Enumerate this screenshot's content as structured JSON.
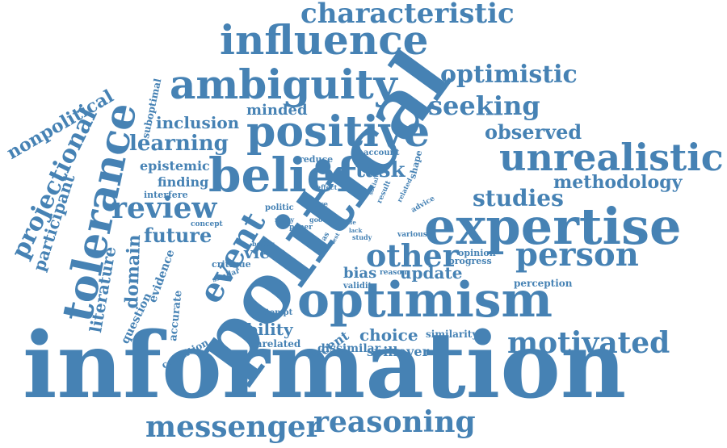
{
  "color": "#4682B4",
  "words": [
    {
      "text": "information",
      "size": 112,
      "rotate": 0
    },
    {
      "text": "political",
      "size": 100,
      "rotate": -54
    },
    {
      "text": "expertise",
      "size": 62,
      "rotate": 0
    },
    {
      "text": "optimism",
      "size": 60,
      "rotate": 0
    },
    {
      "text": "tolerance",
      "size": 52,
      "rotate": -78
    },
    {
      "text": "belief",
      "size": 58,
      "rotate": 0
    },
    {
      "text": "positive",
      "size": 52,
      "rotate": 0
    },
    {
      "text": "ambiguity",
      "size": 50,
      "rotate": 0
    },
    {
      "text": "influence",
      "size": 50,
      "rotate": 0
    },
    {
      "text": "unrealistic",
      "size": 46,
      "rotate": 0
    },
    {
      "text": "characteristic",
      "size": 34,
      "rotate": 0
    },
    {
      "text": "person",
      "size": 40,
      "rotate": 0
    },
    {
      "text": "reasoning",
      "size": 36,
      "rotate": 0
    },
    {
      "text": "messenger",
      "size": 36,
      "rotate": 0
    },
    {
      "text": "motivated",
      "size": 36,
      "rotate": 0
    },
    {
      "text": "other",
      "size": 38,
      "rotate": 0
    },
    {
      "text": "event",
      "size": 40,
      "rotate": -60
    },
    {
      "text": "review",
      "size": 36,
      "rotate": 0
    },
    {
      "text": "projectional",
      "size": 30,
      "rotate": -64
    },
    {
      "text": "optimistic",
      "size": 30,
      "rotate": 0
    },
    {
      "text": "seeking",
      "size": 32,
      "rotate": 0
    },
    {
      "text": "studies",
      "size": 28,
      "rotate": 0
    },
    {
      "text": "learning",
      "size": 26,
      "rotate": 0
    },
    {
      "text": "observed",
      "size": 24,
      "rotate": 0
    },
    {
      "text": "methodology",
      "size": 22,
      "rotate": 0
    },
    {
      "text": "task",
      "size": 26,
      "rotate": 0
    },
    {
      "text": "nonpolitical",
      "size": 22,
      "rotate": -30
    },
    {
      "text": "participant",
      "size": 20,
      "rotate": -72
    },
    {
      "text": "literature",
      "size": 20,
      "rotate": -80
    },
    {
      "text": "domain",
      "size": 22,
      "rotate": -88
    },
    {
      "text": "future",
      "size": 24,
      "rotate": 0
    },
    {
      "text": "inclusion",
      "size": 20,
      "rotate": 0
    },
    {
      "text": "minded",
      "size": 18,
      "rotate": 0
    },
    {
      "text": "epistemic",
      "size": 16,
      "rotate": 0
    },
    {
      "text": "finding",
      "size": 16,
      "rotate": 0
    },
    {
      "text": "interfere",
      "size": 11,
      "rotate": 0
    },
    {
      "text": "suboptimal",
      "size": 12,
      "rotate": -78
    },
    {
      "text": "view",
      "size": 20,
      "rotate": 0
    },
    {
      "text": "ability",
      "size": 20,
      "rotate": 0
    },
    {
      "text": "choice",
      "size": 20,
      "rotate": 0
    },
    {
      "text": "update",
      "size": 20,
      "rotate": 0
    },
    {
      "text": "bias",
      "size": 18,
      "rotate": 0
    },
    {
      "text": "evidence",
      "size": 14,
      "rotate": -70
    },
    {
      "text": "question",
      "size": 14,
      "rotate": -64
    },
    {
      "text": "accurate",
      "size": 13,
      "rotate": -84
    },
    {
      "text": "condition",
      "size": 12,
      "rotate": -28
    },
    {
      "text": "critique",
      "size": 11,
      "rotate": 0
    },
    {
      "text": "similar",
      "size": 9,
      "rotate": -20
    },
    {
      "text": "concept",
      "size": 9,
      "rotate": 0
    },
    {
      "text": "unrelated",
      "size": 12,
      "rotate": 0
    },
    {
      "text": "recent",
      "size": 16,
      "rotate": -34
    },
    {
      "text": "dissimilar",
      "size": 14,
      "rotate": 0
    },
    {
      "text": "spillover",
      "size": 16,
      "rotate": 0
    },
    {
      "text": "similarity",
      "size": 12,
      "rotate": 0
    },
    {
      "text": "perception",
      "size": 12,
      "rotate": 0
    },
    {
      "text": "opinion",
      "size": 11,
      "rotate": 0
    },
    {
      "text": "progress",
      "size": 11,
      "rotate": 0
    },
    {
      "text": "validity",
      "size": 10,
      "rotate": 0
    },
    {
      "text": "reason",
      "size": 9,
      "rotate": 0
    },
    {
      "text": "attempt",
      "size": 10,
      "rotate": 0
    },
    {
      "text": "reduce",
      "size": 11,
      "rotate": 0
    },
    {
      "text": "account",
      "size": 10,
      "rotate": 0
    },
    {
      "text": "shape",
      "size": 11,
      "rotate": -76
    },
    {
      "text": "effect",
      "size": 8,
      "rotate": 0
    },
    {
      "text": "social",
      "size": 7,
      "rotate": -70
    },
    {
      "text": "result",
      "size": 9,
      "rotate": -66
    },
    {
      "text": "related",
      "size": 8,
      "rotate": -64
    },
    {
      "text": "advice",
      "size": 9,
      "rotate": -30
    },
    {
      "text": "politic",
      "size": 10,
      "rotate": 0
    },
    {
      "text": "more",
      "size": 9,
      "rotate": 0
    },
    {
      "text": "many",
      "size": 8,
      "rotate": 0
    },
    {
      "text": "good",
      "size": 8,
      "rotate": 0
    },
    {
      "text": "paper",
      "size": 9,
      "rotate": 0
    },
    {
      "text": "as",
      "size": 9,
      "rotate": -60
    },
    {
      "text": "life",
      "size": 7,
      "rotate": 0
    },
    {
      "text": "lack",
      "size": 7,
      "rotate": 0
    },
    {
      "text": "study",
      "size": 8,
      "rotate": 0
    },
    {
      "text": "various",
      "size": 9,
      "rotate": 0
    },
    {
      "text": "better",
      "size": 8,
      "rotate": 0
    },
    {
      "text": "test",
      "size": 7,
      "rotate": -60
    }
  ]
}
